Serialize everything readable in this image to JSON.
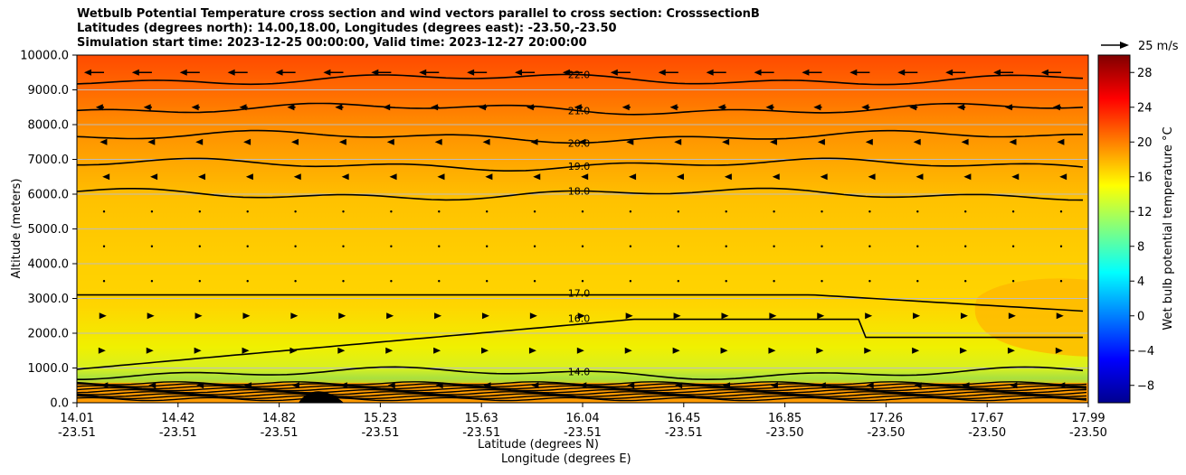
{
  "title": {
    "line1": "Wetbulb Potential Temperature cross section and wind vectors parallel to cross section: CrosssectionB",
    "line2": "Latitudes (degrees north): 14.00,18.00, Longitudes (degrees east): -23.50,-23.50",
    "line3": "Simulation start time: 2023-12-25 00:00:00, Valid time: 2023-12-27 20:00:00"
  },
  "xlabel": {
    "line1": "Latitude (degrees N)",
    "line2": "Longitude (degrees E)"
  },
  "ylabel": "Altitude (meters)",
  "colorbar": {
    "label": "Wet bulb potential temperature $^\\circ$C",
    "label_display": "Wet bulb potential temperature °C",
    "ticks": [
      "−8",
      "−4",
      "0",
      "4",
      "8",
      "12",
      "16",
      "20",
      "24",
      "28"
    ],
    "range": [
      -10,
      30
    ],
    "colormap": "jet"
  },
  "quiver_key": "25 m/s",
  "chart_data": {
    "type": "heatmap",
    "subtype": "filled contour cross section with contour lines and wind vectors",
    "x_ticks": [
      {
        "lat": "14.01",
        "lon": "-23.51"
      },
      {
        "lat": "14.42",
        "lon": "-23.51"
      },
      {
        "lat": "14.82",
        "lon": "-23.51"
      },
      {
        "lat": "15.23",
        "lon": "-23.51"
      },
      {
        "lat": "15.63",
        "lon": "-23.51"
      },
      {
        "lat": "16.04",
        "lon": "-23.51"
      },
      {
        "lat": "16.45",
        "lon": "-23.51"
      },
      {
        "lat": "16.85",
        "lon": "-23.50"
      },
      {
        "lat": "17.26",
        "lon": "-23.50"
      },
      {
        "lat": "17.67",
        "lon": "-23.50"
      },
      {
        "lat": "17.99",
        "lon": "-23.50"
      }
    ],
    "x_range": [
      14.01,
      17.99
    ],
    "y_ticks": [
      "0.0",
      "1000.0",
      "2000.0",
      "3000.0",
      "4000.0",
      "5000.0",
      "6000.0",
      "7000.0",
      "8000.0",
      "9000.0",
      "10000.0"
    ],
    "y_range": [
      0,
      10000
    ],
    "grid": "horizontal",
    "contour_levels": [
      {
        "value": 22.0,
        "label": "22.0",
        "alt": 9300
      },
      {
        "value": 21.0,
        "label": "21.0",
        "alt": 8450
      },
      {
        "value": 20.0,
        "label": "20.0",
        "alt": 7650
      },
      {
        "value": 19.0,
        "label": "19.0",
        "alt": 6850
      },
      {
        "value": 18.0,
        "label": "18.0",
        "alt": 6000
      },
      {
        "value": 17.0,
        "label": "17.0",
        "alt": 3100
      },
      {
        "value": 16.0,
        "label": "16.0",
        "alt": 2400
      },
      {
        "value": 14.0,
        "label": "14.0",
        "alt": 850
      }
    ],
    "vector_rows": [
      {
        "alt": 9500,
        "u": -24
      },
      {
        "alt": 8500,
        "u": -10
      },
      {
        "alt": 7500,
        "u": -5
      },
      {
        "alt": 6500,
        "u": -2
      },
      {
        "alt": 5500,
        "u": -1
      },
      {
        "alt": 4500,
        "u": 0
      },
      {
        "alt": 3500,
        "u": 1
      },
      {
        "alt": 2500,
        "u": 3
      },
      {
        "alt": 1500,
        "u": 2
      },
      {
        "alt": 500,
        "u": -4
      }
    ]
  }
}
